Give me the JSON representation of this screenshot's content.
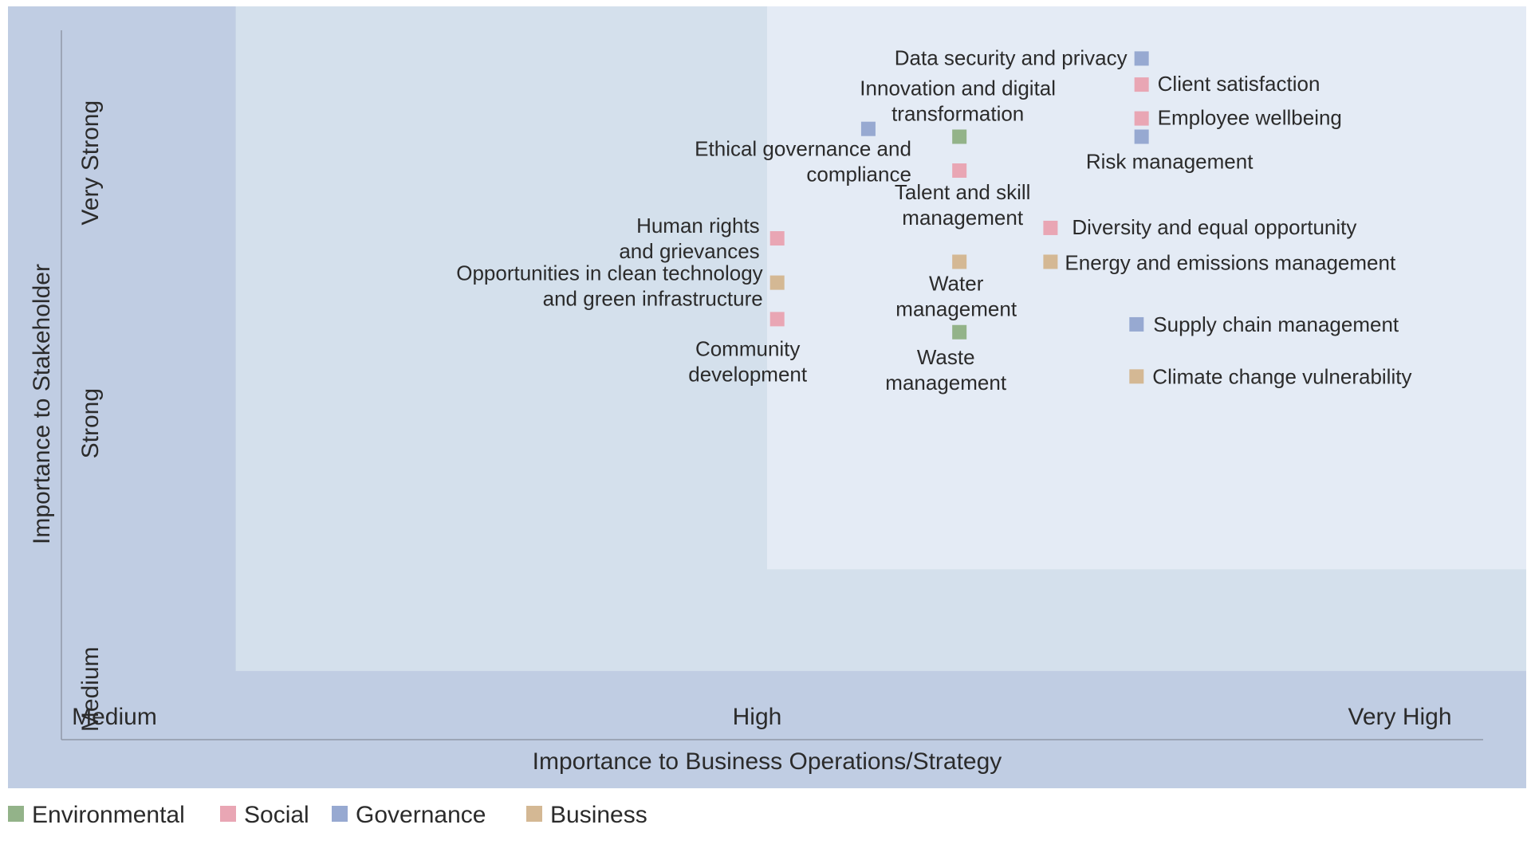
{
  "colors": {
    "outer_bg": "#c0cde3",
    "middle_bg": "#d4e0ec",
    "inner_bg": "#e4ebf5",
    "axis_line": "#8f98a8",
    "text": "#2b2b2b"
  },
  "chart_data": {
    "type": "scatter",
    "title": "",
    "xlabel": "Importance to Business Operations/Strategy",
    "ylabel": "Importance to Stakeholder",
    "xlim": [
      0,
      3
    ],
    "ylim": [
      0,
      3
    ],
    "x_ticks": [
      {
        "label": "Medium",
        "value": 0.1
      },
      {
        "label": "High",
        "value": 1.37
      },
      {
        "label": "Very High",
        "value": 2.64
      }
    ],
    "y_ticks": [
      {
        "label": "Medium",
        "value": 0.38
      },
      {
        "label": "Strong",
        "value": 1.4
      },
      {
        "label": "Very Strong",
        "value": 2.4
      }
    ],
    "zones": [
      {
        "name": "outer",
        "x_from": 0,
        "x_to": 3,
        "y_from": 0,
        "y_to": 3
      },
      {
        "name": "middle",
        "x_from": 0.45,
        "x_to": 3,
        "y_from": 0.45,
        "y_to": 3
      },
      {
        "name": "inner",
        "x_from": 1.5,
        "x_to": 3,
        "y_from": 0.84,
        "y_to": 3
      }
    ],
    "legend_position": "bottom-left",
    "grid": false,
    "series": [
      {
        "name": "Environmental",
        "color": "#93b389"
      },
      {
        "name": "Social",
        "color": "#e9a6b4"
      },
      {
        "name": "Governance",
        "color": "#97a9d1"
      },
      {
        "name": "Business",
        "color": "#d4b894"
      }
    ],
    "points": [
      {
        "label": "Data security and privacy",
        "series": "Governance",
        "x": 2.24,
        "y": 2.8
      },
      {
        "label": "Client satisfaction",
        "series": "Social",
        "x": 2.24,
        "y": 2.7
      },
      {
        "label": "Employee wellbeing",
        "series": "Social",
        "x": 2.24,
        "y": 2.57
      },
      {
        "label": "Risk management",
        "series": "Governance",
        "x": 2.24,
        "y": 2.5
      },
      {
        "label": "Innovation and digital transformation",
        "series": "Environmental",
        "x": 1.88,
        "y": 2.5
      },
      {
        "label": "Ethical governance and compliance",
        "series": "Governance",
        "x": 1.7,
        "y": 2.53
      },
      {
        "label": "Talent and skill management",
        "series": "Social",
        "x": 1.88,
        "y": 2.37
      },
      {
        "label": "Diversity and equal opportunity",
        "series": "Social",
        "x": 2.06,
        "y": 2.15
      },
      {
        "label": "Human rights and grievances",
        "series": "Social",
        "x": 1.52,
        "y": 2.11
      },
      {
        "label": "Water management",
        "series": "Business",
        "x": 1.88,
        "y": 2.02
      },
      {
        "label": "Energy and emissions management",
        "series": "Business",
        "x": 2.06,
        "y": 2.02
      },
      {
        "label": "Opportunities in clean technology and green infrastructure",
        "series": "Business",
        "x": 1.52,
        "y": 1.94
      },
      {
        "label": "Community development",
        "series": "Social",
        "x": 1.52,
        "y": 1.8
      },
      {
        "label": "Supply chain management",
        "series": "Governance",
        "x": 2.23,
        "y": 1.78
      },
      {
        "label": "Waste management",
        "series": "Environmental",
        "x": 1.88,
        "y": 1.75
      },
      {
        "label": "Climate change vulnerability",
        "series": "Business",
        "x": 2.23,
        "y": 1.58
      }
    ]
  }
}
